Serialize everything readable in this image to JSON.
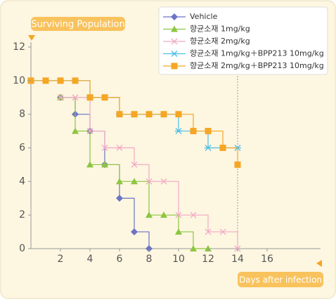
{
  "chart_data": {
    "type": "line",
    "step": true,
    "y_label": "Surviving Population",
    "x_label": "Days after infection",
    "xlim": [
      0,
      19
    ],
    "ylim": [
      0,
      12
    ],
    "xticks": [
      2,
      4,
      6,
      8,
      10,
      12,
      14,
      16
    ],
    "yticks": [
      0,
      2,
      4,
      6,
      8,
      10,
      12
    ],
    "vline_x": 14,
    "series": [
      {
        "name": "Vehicle",
        "color": "#6b74c4",
        "marker": "diamond",
        "x": [
          2,
          3,
          4,
          5,
          6,
          7,
          8
        ],
        "values": [
          9,
          8,
          7,
          5,
          3,
          1,
          0
        ]
      },
      {
        "name": "향균소재 1mg/kg",
        "color": "#8cc63f",
        "marker": "triangle",
        "x": [
          2,
          3,
          4,
          5,
          6,
          7,
          8,
          9,
          10,
          11,
          12
        ],
        "values": [
          9,
          7,
          5,
          5,
          4,
          4,
          2,
          2,
          1,
          0,
          0
        ]
      },
      {
        "name": "향균소재 2mg/kg",
        "color": "#f2a9c4",
        "marker": "x",
        "x": [
          2,
          3,
          4,
          5,
          6,
          7,
          8,
          9,
          10,
          11,
          12,
          13,
          14
        ],
        "values": [
          9,
          9,
          7,
          6,
          6,
          5,
          4,
          4,
          2,
          2,
          1,
          1,
          0
        ]
      },
      {
        "name": "향균소재 1mg/kg＋BPP213 10mg/kg",
        "color": "#4cc0e8",
        "marker": "asterisk",
        "x": [
          0,
          1,
          2,
          3,
          4,
          5,
          6,
          7,
          8,
          9,
          10,
          11,
          12,
          13,
          14
        ],
        "values": [
          10,
          10,
          10,
          10,
          9,
          9,
          8,
          8,
          8,
          8,
          7,
          7,
          6,
          6,
          6
        ]
      },
      {
        "name": "향균소재 2mg/kg＋BPP213 10mg/kg",
        "color": "#f5a623",
        "marker": "square",
        "x": [
          0,
          1,
          2,
          3,
          4,
          5,
          6,
          7,
          8,
          9,
          10,
          11,
          12,
          13,
          14
        ],
        "values": [
          10,
          10,
          10,
          10,
          9,
          9,
          8,
          8,
          8,
          8,
          8,
          7,
          7,
          6,
          5
        ]
      }
    ]
  }
}
